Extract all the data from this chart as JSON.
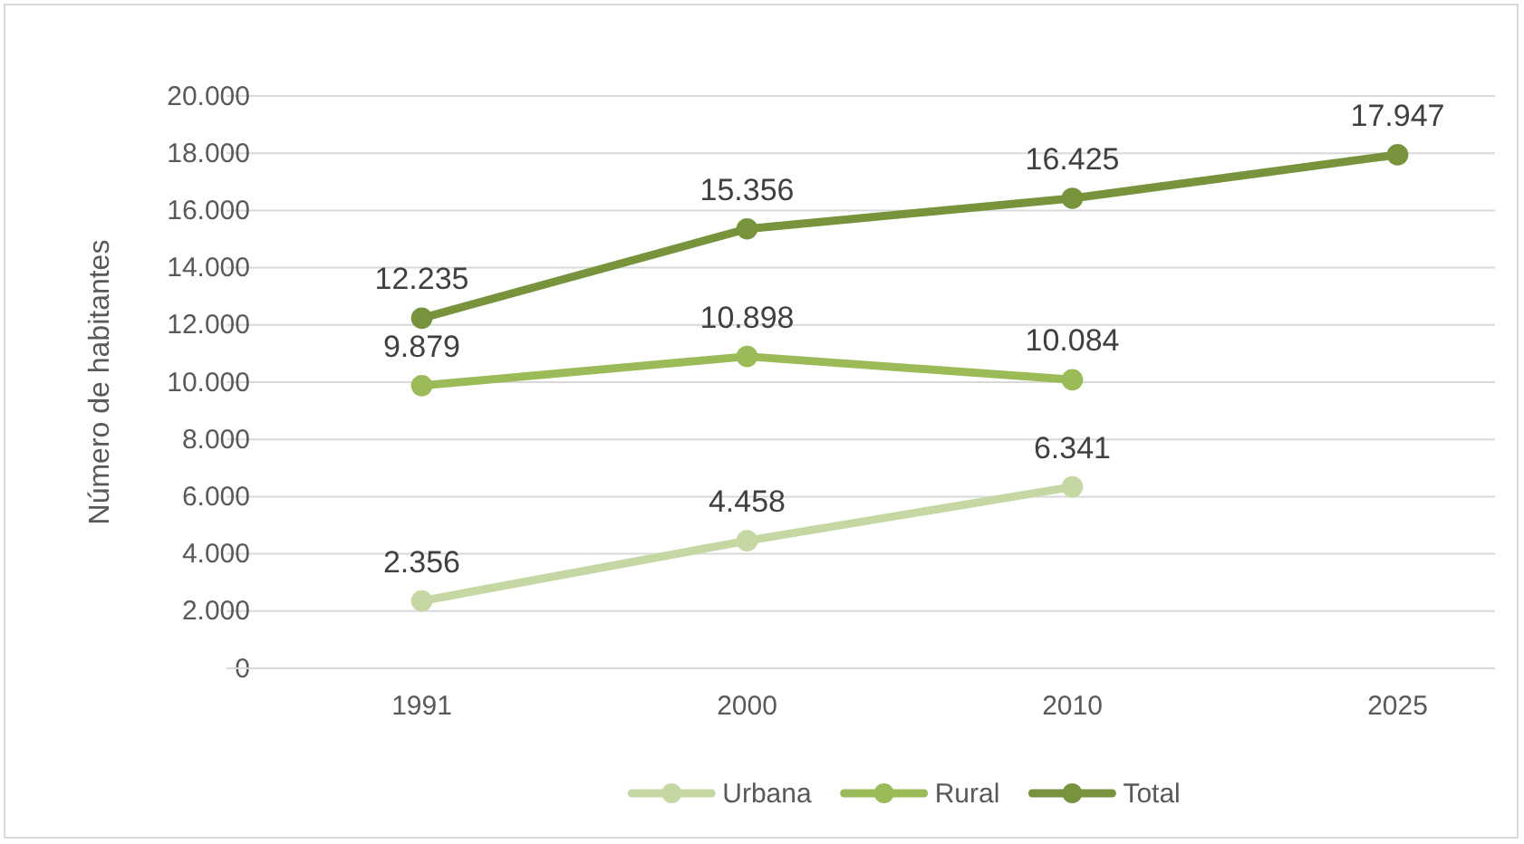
{
  "chart_data": {
    "type": "line",
    "ylabel": "Número de habitantes",
    "categories": [
      "1991",
      "2000",
      "2010",
      "2025"
    ],
    "ylim": [
      0,
      20000
    ],
    "yticks": [
      {
        "value": 0,
        "label": "0"
      },
      {
        "value": 2000,
        "label": "2.000"
      },
      {
        "value": 4000,
        "label": "4.000"
      },
      {
        "value": 6000,
        "label": "6.000"
      },
      {
        "value": 8000,
        "label": "8.000"
      },
      {
        "value": 10000,
        "label": "10.000"
      },
      {
        "value": 12000,
        "label": "12.000"
      },
      {
        "value": 14000,
        "label": "14.000"
      },
      {
        "value": 16000,
        "label": "16.000"
      },
      {
        "value": 18000,
        "label": "18.000"
      },
      {
        "value": 20000,
        "label": "20.000"
      }
    ],
    "grid": "y",
    "legend": "bottom",
    "marker": "circle",
    "line_style": "solid",
    "series": [
      {
        "name": "Urbana",
        "color": "#c5d8a4",
        "values": [
          2356,
          4458,
          6341,
          null
        ],
        "value_labels": [
          "2.356",
          "4.458",
          "6.341",
          null
        ]
      },
      {
        "name": "Rural",
        "color": "#9bbb59",
        "values": [
          9879,
          10898,
          10084,
          null
        ],
        "value_labels": [
          "9.879",
          "10.898",
          "10.084",
          null
        ]
      },
      {
        "name": "Total",
        "color": "#77933c",
        "values": [
          12235,
          15356,
          16425,
          17947
        ],
        "value_labels": [
          "12.235",
          "15.356",
          "16.425",
          "17.947"
        ]
      }
    ]
  }
}
